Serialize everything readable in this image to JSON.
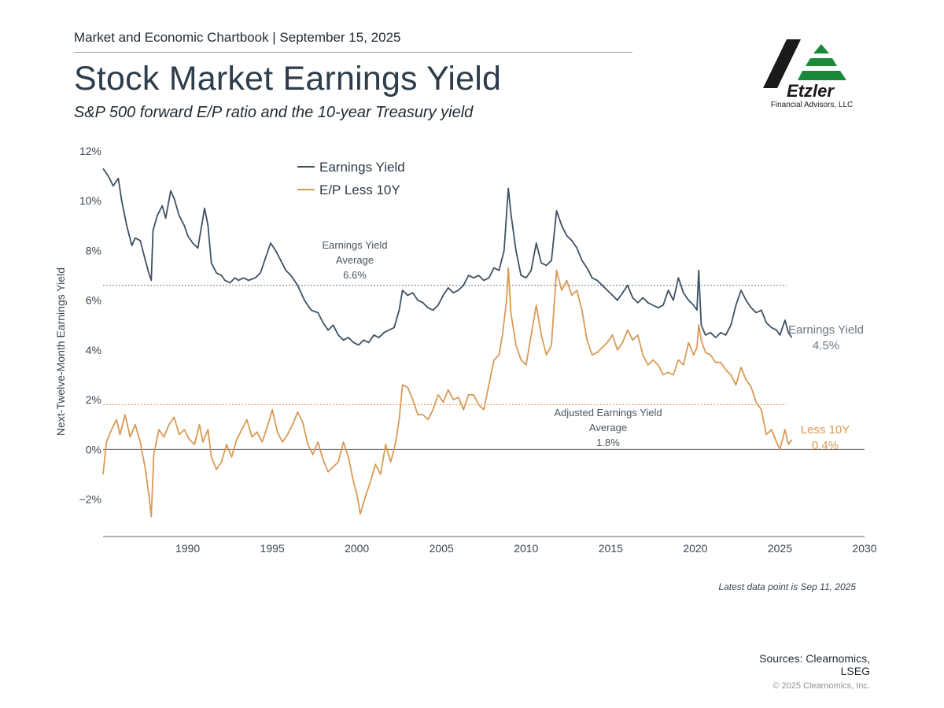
{
  "header": {
    "chartbook_line": "Market and Economic Chartbook | September 15, 2025",
    "title": "Stock Market Earnings Yield",
    "subtitle": "S&P 500 forward E/P ratio and the 10-year Treasury yield"
  },
  "logo": {
    "wordmark": "Etzler",
    "tagline": "Financial Advisors, LLC",
    "colors": {
      "dark": "#1a1a1a",
      "green": "#1a8a3a"
    }
  },
  "footer": {
    "latest_note": "Latest data point is Sep 11, 2025",
    "sources_line1": "Sources: Clearnomics,",
    "sources_line2": "LSEG",
    "copyright": "© 2025 Clearnomics, Inc."
  },
  "chart_data": {
    "type": "line",
    "ylabel": "Next-Twelve-Month Earnings Yield",
    "xlabel": "",
    "xlim": [
      1985.0,
      2030
    ],
    "ylim": [
      -3.5,
      12
    ],
    "x_ticks": [
      1990,
      1995,
      2000,
      2005,
      2010,
      2015,
      2020,
      2025,
      2030
    ],
    "y_ticks": [
      -2,
      0,
      2,
      4,
      6,
      8,
      10,
      12
    ],
    "y_tick_labels": [
      "−2%",
      "0%",
      "2%",
      "4%",
      "6%",
      "8%",
      "10%",
      "12%"
    ],
    "legend_position": "top-center",
    "colors": {
      "earnings_yield": "#3e5163",
      "ep_less_10y": "#d99a55",
      "zero_line": "#555555",
      "avg_line": "#777777"
    },
    "reference_lines": [
      {
        "name": "Earnings Yield Average",
        "value": 6.6,
        "label_lines": [
          "Earnings Yield",
          "Average",
          "6.6%"
        ]
      },
      {
        "name": "Adjusted Earnings Yield Average",
        "value": 1.8,
        "label_lines": [
          "Adjusted Earnings Yield",
          "Average",
          "1.8%"
        ]
      }
    ],
    "end_labels": [
      {
        "series": "Earnings Yield",
        "lines": [
          "Earnings Yield",
          "4.5%"
        ]
      },
      {
        "series": "E/P Less 10Y",
        "lines": [
          "Less 10Y",
          "0.4%"
        ]
      }
    ],
    "series": [
      {
        "name": "Earnings Yield",
        "points": [
          [
            1985.0,
            11.3
          ],
          [
            1985.3,
            11.0
          ],
          [
            1985.6,
            10.6
          ],
          [
            1985.9,
            10.9
          ],
          [
            1986.1,
            10.0
          ],
          [
            1986.4,
            9.0
          ],
          [
            1986.7,
            8.2
          ],
          [
            1986.9,
            8.5
          ],
          [
            1987.2,
            8.4
          ],
          [
            1987.5,
            7.6
          ],
          [
            1987.7,
            7.1
          ],
          [
            1987.85,
            6.8
          ],
          [
            1987.95,
            8.8
          ],
          [
            1988.2,
            9.4
          ],
          [
            1988.5,
            9.8
          ],
          [
            1988.7,
            9.3
          ],
          [
            1989.0,
            10.4
          ],
          [
            1989.2,
            10.1
          ],
          [
            1989.5,
            9.4
          ],
          [
            1989.8,
            9.0
          ],
          [
            1990.0,
            8.6
          ],
          [
            1990.3,
            8.3
          ],
          [
            1990.6,
            8.1
          ],
          [
            1990.8,
            8.9
          ],
          [
            1991.0,
            9.7
          ],
          [
            1991.2,
            9.0
          ],
          [
            1991.4,
            7.5
          ],
          [
            1991.7,
            7.1
          ],
          [
            1992.0,
            7.0
          ],
          [
            1992.2,
            6.8
          ],
          [
            1992.5,
            6.7
          ],
          [
            1992.8,
            6.9
          ],
          [
            1993.0,
            6.8
          ],
          [
            1993.3,
            6.9
          ],
          [
            1993.6,
            6.8
          ],
          [
            1994.0,
            6.9
          ],
          [
            1994.3,
            7.1
          ],
          [
            1994.6,
            7.7
          ],
          [
            1994.9,
            8.3
          ],
          [
            1995.2,
            8.0
          ],
          [
            1995.5,
            7.6
          ],
          [
            1995.8,
            7.2
          ],
          [
            1996.1,
            7.0
          ],
          [
            1996.5,
            6.6
          ],
          [
            1996.9,
            6.0
          ],
          [
            1997.3,
            5.6
          ],
          [
            1997.7,
            5.5
          ],
          [
            1998.0,
            5.1
          ],
          [
            1998.3,
            4.8
          ],
          [
            1998.6,
            5.0
          ],
          [
            1998.9,
            4.6
          ],
          [
            1999.2,
            4.4
          ],
          [
            1999.5,
            4.5
          ],
          [
            1999.8,
            4.3
          ],
          [
            2000.1,
            4.2
          ],
          [
            2000.4,
            4.4
          ],
          [
            2000.7,
            4.3
          ],
          [
            2001.0,
            4.6
          ],
          [
            2001.3,
            4.5
          ],
          [
            2001.6,
            4.7
          ],
          [
            2001.9,
            4.8
          ],
          [
            2002.2,
            4.9
          ],
          [
            2002.5,
            5.6
          ],
          [
            2002.7,
            6.4
          ],
          [
            2003.0,
            6.2
          ],
          [
            2003.3,
            6.3
          ],
          [
            2003.6,
            6.0
          ],
          [
            2003.9,
            5.9
          ],
          [
            2004.2,
            5.7
          ],
          [
            2004.5,
            5.6
          ],
          [
            2004.8,
            5.8
          ],
          [
            2005.1,
            6.2
          ],
          [
            2005.4,
            6.5
          ],
          [
            2005.7,
            6.3
          ],
          [
            2006.0,
            6.4
          ],
          [
            2006.3,
            6.6
          ],
          [
            2006.6,
            7.0
          ],
          [
            2006.9,
            6.9
          ],
          [
            2007.2,
            7.0
          ],
          [
            2007.5,
            6.8
          ],
          [
            2007.8,
            6.9
          ],
          [
            2008.1,
            7.3
          ],
          [
            2008.4,
            7.2
          ],
          [
            2008.7,
            8.0
          ],
          [
            2008.85,
            9.5
          ],
          [
            2008.95,
            10.5
          ],
          [
            2009.1,
            9.5
          ],
          [
            2009.4,
            8.0
          ],
          [
            2009.7,
            7.0
          ],
          [
            2010.0,
            6.9
          ],
          [
            2010.3,
            7.2
          ],
          [
            2010.6,
            8.3
          ],
          [
            2010.9,
            7.5
          ],
          [
            2011.2,
            7.4
          ],
          [
            2011.5,
            7.6
          ],
          [
            2011.8,
            9.6
          ],
          [
            2012.1,
            9.0
          ],
          [
            2012.4,
            8.6
          ],
          [
            2012.7,
            8.4
          ],
          [
            2013.0,
            8.1
          ],
          [
            2013.3,
            7.6
          ],
          [
            2013.6,
            7.3
          ],
          [
            2013.9,
            6.9
          ],
          [
            2014.2,
            6.8
          ],
          [
            2014.5,
            6.6
          ],
          [
            2014.8,
            6.4
          ],
          [
            2015.1,
            6.2
          ],
          [
            2015.4,
            6.0
          ],
          [
            2015.7,
            6.3
          ],
          [
            2016.0,
            6.6
          ],
          [
            2016.3,
            6.1
          ],
          [
            2016.6,
            5.9
          ],
          [
            2016.9,
            6.1
          ],
          [
            2017.2,
            5.9
          ],
          [
            2017.5,
            5.8
          ],
          [
            2017.8,
            5.7
          ],
          [
            2018.1,
            5.8
          ],
          [
            2018.4,
            6.4
          ],
          [
            2018.7,
            6.0
          ],
          [
            2019.0,
            6.9
          ],
          [
            2019.3,
            6.3
          ],
          [
            2019.6,
            6.0
          ],
          [
            2019.9,
            5.8
          ],
          [
            2020.1,
            5.6
          ],
          [
            2020.2,
            7.2
          ],
          [
            2020.35,
            5.0
          ],
          [
            2020.6,
            4.6
          ],
          [
            2020.9,
            4.7
          ],
          [
            2021.2,
            4.5
          ],
          [
            2021.5,
            4.7
          ],
          [
            2021.8,
            4.6
          ],
          [
            2022.1,
            5.0
          ],
          [
            2022.4,
            5.8
          ],
          [
            2022.7,
            6.4
          ],
          [
            2023.0,
            6.0
          ],
          [
            2023.3,
            5.7
          ],
          [
            2023.6,
            5.5
          ],
          [
            2023.9,
            5.6
          ],
          [
            2024.2,
            5.1
          ],
          [
            2024.5,
            4.9
          ],
          [
            2024.8,
            4.8
          ],
          [
            2025.0,
            4.6
          ],
          [
            2025.3,
            5.2
          ],
          [
            2025.5,
            4.7
          ],
          [
            2025.7,
            4.5
          ]
        ]
      },
      {
        "name": "E/P Less 10Y",
        "points": [
          [
            1985.0,
            -1.0
          ],
          [
            1985.2,
            0.3
          ],
          [
            1985.5,
            0.8
          ],
          [
            1985.8,
            1.2
          ],
          [
            1986.0,
            0.6
          ],
          [
            1986.3,
            1.4
          ],
          [
            1986.6,
            0.5
          ],
          [
            1986.9,
            1.0
          ],
          [
            1987.2,
            0.3
          ],
          [
            1987.5,
            -0.8
          ],
          [
            1987.7,
            -1.8
          ],
          [
            1987.85,
            -2.7
          ],
          [
            1988.0,
            -0.2
          ],
          [
            1988.3,
            0.8
          ],
          [
            1988.6,
            0.5
          ],
          [
            1988.9,
            1.0
          ],
          [
            1989.2,
            1.3
          ],
          [
            1989.5,
            0.6
          ],
          [
            1989.8,
            0.8
          ],
          [
            1990.1,
            0.4
          ],
          [
            1990.4,
            0.2
          ],
          [
            1990.7,
            1.0
          ],
          [
            1990.9,
            0.3
          ],
          [
            1991.2,
            0.8
          ],
          [
            1991.4,
            -0.3
          ],
          [
            1991.7,
            -0.8
          ],
          [
            1992.0,
            -0.5
          ],
          [
            1992.3,
            0.2
          ],
          [
            1992.6,
            -0.3
          ],
          [
            1992.9,
            0.4
          ],
          [
            1993.2,
            0.8
          ],
          [
            1993.5,
            1.2
          ],
          [
            1993.8,
            0.5
          ],
          [
            1994.1,
            0.7
          ],
          [
            1994.4,
            0.3
          ],
          [
            1994.7,
            0.9
          ],
          [
            1995.0,
            1.6
          ],
          [
            1995.3,
            0.7
          ],
          [
            1995.6,
            0.3
          ],
          [
            1995.9,
            0.6
          ],
          [
            1996.2,
            1.0
          ],
          [
            1996.5,
            1.5
          ],
          [
            1996.8,
            1.1
          ],
          [
            1997.1,
            0.2
          ],
          [
            1997.4,
            -0.2
          ],
          [
            1997.7,
            0.3
          ],
          [
            1998.0,
            -0.4
          ],
          [
            1998.3,
            -0.9
          ],
          [
            1998.6,
            -0.7
          ],
          [
            1998.9,
            -0.5
          ],
          [
            1999.2,
            0.3
          ],
          [
            1999.5,
            -0.3
          ],
          [
            1999.8,
            -1.3
          ],
          [
            2000.0,
            -1.8
          ],
          [
            2000.2,
            -2.6
          ],
          [
            2000.5,
            -1.9
          ],
          [
            2000.8,
            -1.3
          ],
          [
            2001.1,
            -0.6
          ],
          [
            2001.4,
            -1.0
          ],
          [
            2001.7,
            0.2
          ],
          [
            2002.0,
            -0.5
          ],
          [
            2002.3,
            0.3
          ],
          [
            2002.5,
            1.2
          ],
          [
            2002.7,
            2.6
          ],
          [
            2003.0,
            2.5
          ],
          [
            2003.3,
            2.0
          ],
          [
            2003.6,
            1.4
          ],
          [
            2003.9,
            1.4
          ],
          [
            2004.2,
            1.2
          ],
          [
            2004.5,
            1.6
          ],
          [
            2004.8,
            2.2
          ],
          [
            2005.1,
            1.9
          ],
          [
            2005.4,
            2.4
          ],
          [
            2005.7,
            2.0
          ],
          [
            2006.0,
            2.1
          ],
          [
            2006.3,
            1.6
          ],
          [
            2006.6,
            2.2
          ],
          [
            2006.9,
            2.2
          ],
          [
            2007.2,
            1.8
          ],
          [
            2007.5,
            1.6
          ],
          [
            2007.8,
            2.6
          ],
          [
            2008.1,
            3.6
          ],
          [
            2008.4,
            3.8
          ],
          [
            2008.6,
            4.6
          ],
          [
            2008.85,
            6.0
          ],
          [
            2008.95,
            7.3
          ],
          [
            2009.1,
            5.5
          ],
          [
            2009.4,
            4.2
          ],
          [
            2009.7,
            3.6
          ],
          [
            2010.0,
            3.4
          ],
          [
            2010.3,
            4.6
          ],
          [
            2010.6,
            5.8
          ],
          [
            2010.9,
            4.6
          ],
          [
            2011.2,
            3.8
          ],
          [
            2011.5,
            4.2
          ],
          [
            2011.8,
            7.2
          ],
          [
            2012.1,
            6.4
          ],
          [
            2012.4,
            6.8
          ],
          [
            2012.7,
            6.2
          ],
          [
            2013.0,
            6.4
          ],
          [
            2013.3,
            5.6
          ],
          [
            2013.6,
            4.4
          ],
          [
            2013.9,
            3.8
          ],
          [
            2014.2,
            3.9
          ],
          [
            2014.5,
            4.1
          ],
          [
            2014.8,
            4.3
          ],
          [
            2015.1,
            4.6
          ],
          [
            2015.4,
            4.0
          ],
          [
            2015.7,
            4.3
          ],
          [
            2016.0,
            4.8
          ],
          [
            2016.3,
            4.4
          ],
          [
            2016.6,
            4.6
          ],
          [
            2016.9,
            3.8
          ],
          [
            2017.2,
            3.4
          ],
          [
            2017.5,
            3.6
          ],
          [
            2017.8,
            3.4
          ],
          [
            2018.1,
            3.0
          ],
          [
            2018.4,
            3.1
          ],
          [
            2018.7,
            3.0
          ],
          [
            2019.0,
            3.6
          ],
          [
            2019.3,
            3.4
          ],
          [
            2019.6,
            4.3
          ],
          [
            2019.9,
            3.8
          ],
          [
            2020.1,
            4.1
          ],
          [
            2020.2,
            5.0
          ],
          [
            2020.35,
            4.4
          ],
          [
            2020.6,
            3.9
          ],
          [
            2020.9,
            3.8
          ],
          [
            2021.2,
            3.5
          ],
          [
            2021.5,
            3.5
          ],
          [
            2021.8,
            3.2
          ],
          [
            2022.1,
            3.0
          ],
          [
            2022.4,
            2.6
          ],
          [
            2022.7,
            3.3
          ],
          [
            2023.0,
            2.8
          ],
          [
            2023.3,
            2.5
          ],
          [
            2023.6,
            1.9
          ],
          [
            2023.9,
            1.6
          ],
          [
            2024.2,
            0.6
          ],
          [
            2024.5,
            0.8
          ],
          [
            2024.8,
            0.3
          ],
          [
            2025.0,
            0.0
          ],
          [
            2025.3,
            0.8
          ],
          [
            2025.5,
            0.2
          ],
          [
            2025.7,
            0.4
          ]
        ]
      }
    ]
  }
}
